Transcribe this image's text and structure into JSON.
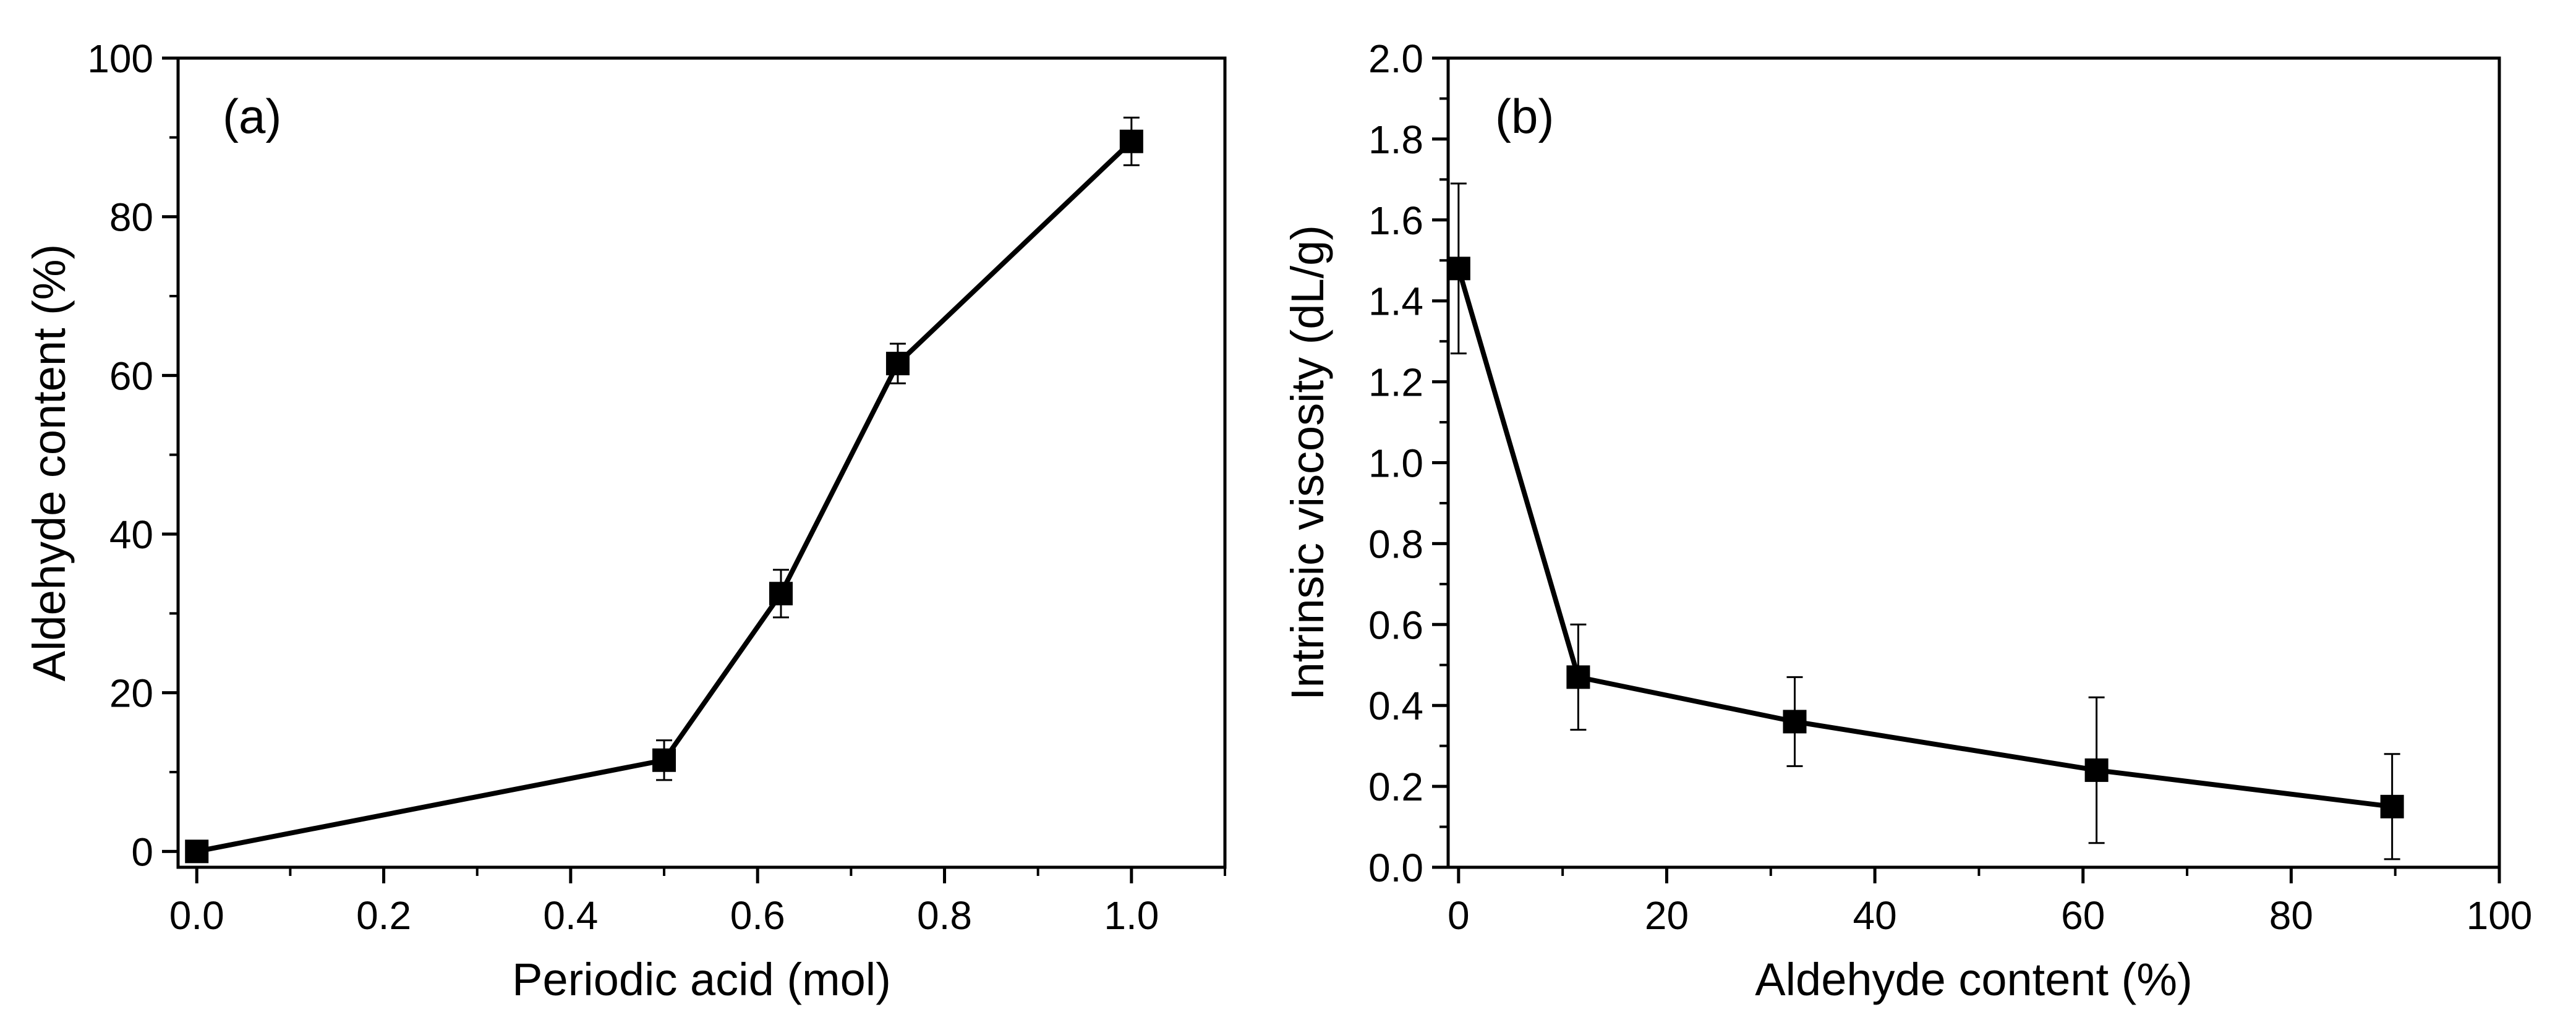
{
  "chart_data": [
    {
      "type": "line",
      "panel_label": "(a)",
      "xlabel": "Periodic acid (mol)",
      "ylabel": "Aldehyde content (%)",
      "xlim": [
        -0.02,
        1.1
      ],
      "ylim": [
        -2,
        100
      ],
      "xticks": [
        0.0,
        0.2,
        0.4,
        0.6,
        0.8,
        1.0
      ],
      "xtick_labels": [
        "0.0",
        "0.2",
        "0.4",
        "0.6",
        "0.8",
        "1.0"
      ],
      "yticks": [
        0,
        20,
        40,
        60,
        80,
        100
      ],
      "ytick_labels": [
        "0",
        "20",
        "40",
        "60",
        "80",
        "100"
      ],
      "x_minor_step": 0.1,
      "y_minor_step": 10,
      "series": [
        {
          "name": "Aldehyde content",
          "marker": "square",
          "x": [
            0.0,
            0.5,
            0.625,
            0.75,
            1.0
          ],
          "y": [
            0,
            11.5,
            32.5,
            61.5,
            89.5
          ],
          "err": [
            0,
            2.5,
            3,
            2.5,
            3
          ]
        }
      ]
    },
    {
      "type": "line",
      "panel_label": "(b)",
      "xlabel": "Aldehyde content (%)",
      "ylabel": "Intrinsic viscosity (dL/g)",
      "xlim": [
        -1,
        100
      ],
      "ylim": [
        0,
        2.0
      ],
      "xticks": [
        0,
        20,
        40,
        60,
        80,
        100
      ],
      "xtick_labels": [
        "0",
        "20",
        "40",
        "60",
        "80",
        "100"
      ],
      "yticks": [
        0.0,
        0.2,
        0.4,
        0.6,
        0.8,
        1.0,
        1.2,
        1.4,
        1.6,
        1.8,
        2.0
      ],
      "ytick_labels": [
        "0.0",
        "0.2",
        "0.4",
        "0.6",
        "0.8",
        "1.0",
        "1.2",
        "1.4",
        "1.6",
        "1.8",
        "2.0"
      ],
      "x_minor_step": 10,
      "y_minor_step": 0.1,
      "series": [
        {
          "name": "Intrinsic viscosity",
          "marker": "square",
          "x": [
            0,
            11.5,
            32.3,
            61.3,
            89.7
          ],
          "y": [
            1.48,
            0.47,
            0.36,
            0.24,
            0.15
          ],
          "err": [
            0.21,
            0.13,
            0.11,
            0.18,
            0.13
          ]
        }
      ]
    }
  ]
}
